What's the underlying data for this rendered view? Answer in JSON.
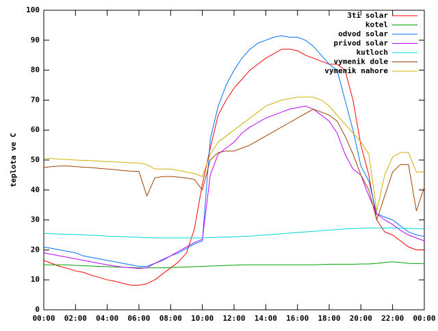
{
  "chart_data": {
    "type": "line",
    "y_label": "teplota ve C",
    "x": [
      0,
      0.5,
      1,
      1.5,
      2,
      2.5,
      3,
      3.5,
      4,
      4.5,
      5,
      5.5,
      6,
      6.5,
      7,
      7.5,
      8,
      8.5,
      9,
      9.5,
      10,
      10.5,
      11,
      11.5,
      12,
      12.5,
      13,
      13.5,
      14,
      14.5,
      15,
      15.5,
      16,
      16.5,
      17,
      17.5,
      18,
      18.5,
      19,
      19.5,
      20,
      20.5,
      21,
      21.5,
      22,
      22.5,
      23,
      23.5,
      24
    ],
    "xlim": [
      0,
      24
    ],
    "xticks": [
      {
        "value": 0,
        "label": "00:00"
      },
      {
        "value": 2,
        "label": "02:00"
      },
      {
        "value": 4,
        "label": "04:00"
      },
      {
        "value": 6,
        "label": "06:00"
      },
      {
        "value": 8,
        "label": "08:00"
      },
      {
        "value": 10,
        "label": "10:00"
      },
      {
        "value": 12,
        "label": "12:00"
      },
      {
        "value": 14,
        "label": "14:00"
      },
      {
        "value": 16,
        "label": "16:00"
      },
      {
        "value": 18,
        "label": "18:00"
      },
      {
        "value": 20,
        "label": "20:00"
      },
      {
        "value": 22,
        "label": "22:00"
      },
      {
        "value": 24,
        "label": "00:00"
      }
    ],
    "ylim": [
      0,
      100
    ],
    "yticks": [
      0,
      10,
      20,
      30,
      40,
      50,
      60,
      70,
      80,
      90,
      100
    ],
    "grid": false,
    "legend": "top-right",
    "series": [
      {
        "name": "3ti solar",
        "color": "#ff0000",
        "values": [
          16.5,
          15.5,
          14.5,
          13.8,
          13,
          12.5,
          11.5,
          10.8,
          10,
          9.5,
          8.8,
          8.2,
          8.2,
          8.7,
          10,
          12,
          14,
          16,
          19,
          27,
          42,
          54,
          65,
          70,
          74,
          77,
          80,
          82,
          84,
          85.5,
          87,
          87,
          86.5,
          85,
          84,
          83,
          82,
          82,
          80,
          70,
          55,
          45,
          30,
          26,
          25,
          23,
          21,
          20,
          20
        ]
      },
      {
        "name": "kotel",
        "color": "#00a000",
        "values": [
          15,
          15,
          15,
          15,
          14.8,
          14.7,
          14.6,
          14.5,
          14.4,
          14.3,
          14.2,
          14.1,
          14,
          14,
          14,
          14,
          14.1,
          14.2,
          14.3,
          14.4,
          14.5,
          14.6,
          14.7,
          14.8,
          14.9,
          15,
          15,
          15,
          15,
          15,
          15,
          15,
          15,
          15,
          15,
          15.1,
          15.2,
          15.2,
          15.2,
          15.2,
          15.3,
          15.3,
          15.5,
          15.8,
          16,
          15.8,
          15.5,
          15.4,
          15.5
        ]
      },
      {
        "name": "odvod solar",
        "color": "#0070ff",
        "values": [
          21,
          20.5,
          20,
          19.5,
          19,
          18,
          17.5,
          17,
          16.5,
          16,
          15.5,
          15,
          14.5,
          14.5,
          15.5,
          16.5,
          18,
          19,
          20.5,
          22,
          23,
          57,
          68,
          75,
          80,
          84,
          87,
          89,
          90,
          91,
          91.5,
          91,
          91,
          90,
          88,
          85,
          82,
          80,
          70,
          60,
          48,
          43,
          32,
          31,
          30,
          28,
          26,
          25,
          24.5
        ]
      },
      {
        "name": "privod solar",
        "color": "#c000ff",
        "values": [
          19,
          18.5,
          18,
          17.5,
          17,
          16.5,
          16,
          15.5,
          15,
          14.6,
          14.2,
          14,
          13.8,
          14,
          15.5,
          16.8,
          18,
          19.5,
          21,
          22.5,
          23.5,
          45,
          52,
          54,
          56,
          59,
          61,
          62.5,
          64,
          65,
          66,
          67,
          67.5,
          68,
          67,
          65,
          63,
          59,
          52,
          47,
          45,
          38,
          32,
          30,
          28.5,
          26.5,
          25,
          24,
          23
        ]
      },
      {
        "name": "kutloch",
        "color": "#00d8d8",
        "values": [
          25.5,
          25.4,
          25.3,
          25.2,
          25.1,
          25,
          24.9,
          24.8,
          24.6,
          24.5,
          24.4,
          24.3,
          24.2,
          24.1,
          24,
          24,
          24,
          24,
          24,
          24,
          24,
          24.1,
          24.2,
          24.3,
          24.4,
          24.5,
          24.6,
          24.8,
          25,
          25.2,
          25.4,
          25.6,
          25.8,
          26,
          26.2,
          26.4,
          26.6,
          26.8,
          27,
          27.1,
          27.2,
          27.3,
          27.3,
          27.3,
          27.3,
          27.2,
          27.2,
          27.1,
          27
        ]
      },
      {
        "name": "vymenik dole",
        "color": "#a04000",
        "values": [
          47.5,
          47.8,
          48,
          48,
          47.8,
          47.6,
          47.5,
          47.2,
          47,
          46.8,
          46.5,
          46.3,
          46.2,
          38,
          44,
          44.5,
          44.5,
          44.3,
          44,
          43.5,
          40,
          50,
          52.5,
          53,
          53,
          54,
          55,
          56.5,
          58,
          59.5,
          61,
          62.5,
          64,
          65.5,
          67,
          66,
          65,
          63,
          58,
          52,
          45,
          40,
          30,
          38,
          46,
          48.5,
          48.5,
          33,
          41
        ]
      },
      {
        "name": "vymenik nahore",
        "color": "#d0b000",
        "values": [
          50.5,
          50.5,
          50.3,
          50.2,
          50,
          49.9,
          49.8,
          49.6,
          49.5,
          49.4,
          49.2,
          49.1,
          49,
          48.5,
          47,
          47,
          47,
          46.5,
          46,
          45.5,
          44.5,
          52,
          56,
          58,
          60,
          62,
          64,
          66,
          68,
          69,
          70,
          70.5,
          71,
          71,
          71,
          70,
          68,
          65,
          62,
          59,
          56,
          52,
          33,
          45,
          51,
          52.5,
          52.5,
          46,
          46
        ]
      }
    ]
  }
}
